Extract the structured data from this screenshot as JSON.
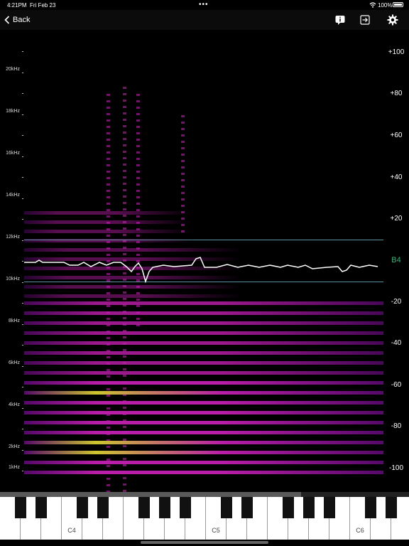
{
  "status_bar": {
    "time": "4:21PM",
    "date": "Fri Feb 23",
    "battery": "100%"
  },
  "nav": {
    "back_label": "Back"
  },
  "icons": {
    "back": "chevron-left-icon",
    "info": "info-bubble-icon",
    "export": "export-icon",
    "settings": "gear-icon"
  },
  "spectrogram": {
    "frequency_labels": [
      "20kHz",
      "18kHz",
      "16kHz",
      "14kHz",
      "12kHz",
      "10kHz",
      "8kHz",
      "6kHz",
      "4kHz",
      "2kHz",
      "1kHz"
    ],
    "db_labels": [
      "+100",
      "+80",
      "+60",
      "+40",
      "+20",
      "-20",
      "-40",
      "-60",
      "-80",
      "-100"
    ],
    "detected_note": "B4",
    "colors": {
      "background": "#000000",
      "low": "#5a0a6e",
      "mid": "#c21fb0",
      "high": "#d8d030",
      "pitch_trace": "#ffffff",
      "note_accent": "#3fb07a"
    }
  },
  "keyboard": {
    "labels": [
      "C4",
      "C5",
      "C6"
    ]
  }
}
